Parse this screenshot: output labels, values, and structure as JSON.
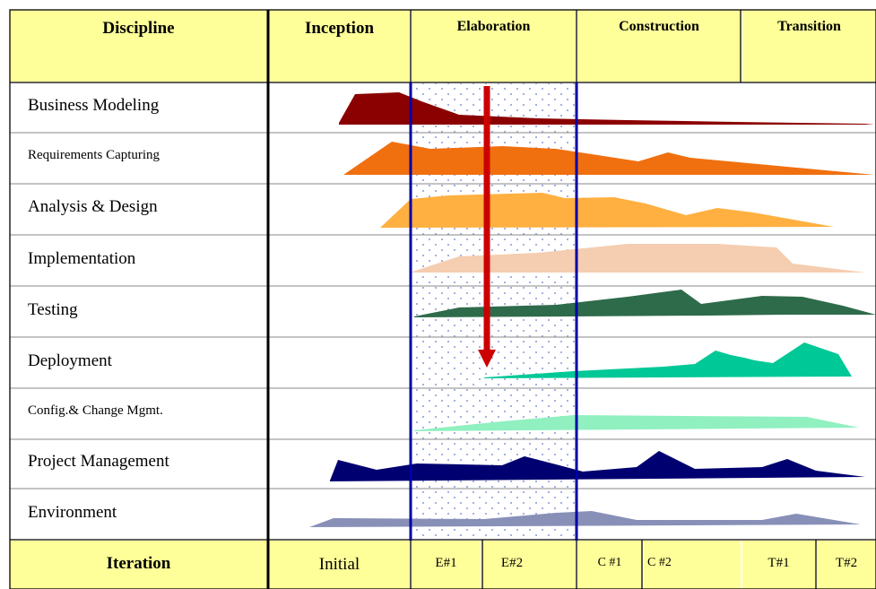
{
  "header": {
    "discipline": "Discipline",
    "inception": "Inception",
    "elaboration": "Elaboration",
    "construction": "Construction",
    "transition": "Transition"
  },
  "disciplines": [
    "Business Modeling",
    "Requirements Capturing",
    "Analysis & Design",
    "Implementation",
    "Testing",
    "Deployment",
    "Config.& Change Mgmt.",
    "Project Management",
    "Environment"
  ],
  "footer": {
    "iteration": "Iteration",
    "initial": "Initial",
    "e1": "E#1",
    "e2": "E#2",
    "c1": "C #1",
    "c2": "C #2",
    "t1": "T#1",
    "t2": "T#2"
  },
  "colors": {
    "header_bg": "#ffff99",
    "business_modeling": "#8b0000",
    "requirements": "#f07010",
    "analysis_design": "#ffb040",
    "implementation": "#f5cdb0",
    "testing": "#2e6b4a",
    "deployment": "#00c896",
    "config_change": "#90f0c0",
    "project_mgmt": "#000070",
    "environment": "#8890b8",
    "arrow": "#cc0000",
    "grid_blue": "#0000aa"
  }
}
